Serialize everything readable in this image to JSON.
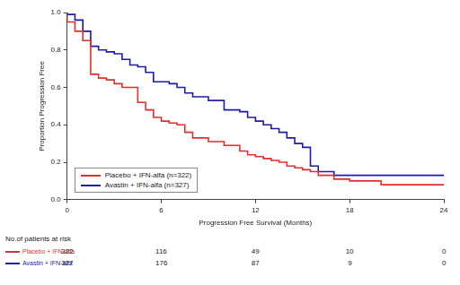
{
  "chart_data": {
    "type": "line",
    "x_label": "Progression Free Survival (Months)",
    "y_label": "Proportion Progression Free",
    "x": [
      0,
      0.5,
      1,
      1.5,
      2,
      2.5,
      3,
      3.5,
      4,
      4.5,
      5,
      5.5,
      6,
      6.5,
      7,
      7.5,
      8,
      9,
      10,
      11,
      11.5,
      12,
      12.5,
      13,
      13.5,
      14,
      14.5,
      15,
      15.5,
      16,
      17,
      18,
      20,
      21,
      24
    ],
    "series": [
      {
        "name": "Placebo + IFN-alfa (n=322)",
        "color": "#e0302e",
        "line_style": "steps",
        "values": [
          1.0,
          0.95,
          0.9,
          0.85,
          0.67,
          0.65,
          0.64,
          0.62,
          0.6,
          0.6,
          0.52,
          0.48,
          0.44,
          0.42,
          0.41,
          0.4,
          0.36,
          0.33,
          0.31,
          0.29,
          0.26,
          0.24,
          0.23,
          0.22,
          0.21,
          0.2,
          0.18,
          0.17,
          0.16,
          0.15,
          0.13,
          0.11,
          0.1,
          0.08,
          0.08
        ]
      },
      {
        "name": "Avastin + IFN-alfa (n=327)",
        "color": "#1c1ca8",
        "line_style": "steps",
        "values": [
          1.0,
          0.99,
          0.96,
          0.9,
          0.82,
          0.8,
          0.79,
          0.78,
          0.75,
          0.72,
          0.71,
          0.68,
          0.63,
          0.63,
          0.62,
          0.6,
          0.57,
          0.55,
          0.53,
          0.48,
          0.47,
          0.44,
          0.42,
          0.4,
          0.38,
          0.36,
          0.33,
          0.3,
          0.28,
          0.18,
          0.15,
          0.13,
          0.13,
          0.13,
          0.13
        ]
      }
    ],
    "xlim": [
      0,
      24
    ],
    "xticks": [
      0,
      6,
      12,
      18,
      24
    ],
    "ylim": [
      0,
      1
    ],
    "yticks": [
      {
        "value": 0,
        "label": "0.0"
      },
      0.2,
      0.4,
      0.6,
      0.8,
      {
        "value": 1,
        "label": "1.0"
      }
    ],
    "grid": false,
    "legend": "lower left",
    "risk_table": {
      "title": "No.of patients at risk",
      "x": [
        0,
        6,
        12,
        18,
        24
      ],
      "rows": [
        {
          "name": "Placebo + IFN-alfa",
          "color": "#e0302e",
          "values": [
            322,
            116,
            49,
            10,
            0
          ]
        },
        {
          "name": "Avastin + IFN-alfa",
          "color": "#1c1ca8",
          "values": [
            327,
            176,
            87,
            9,
            0
          ]
        }
      ]
    }
  }
}
